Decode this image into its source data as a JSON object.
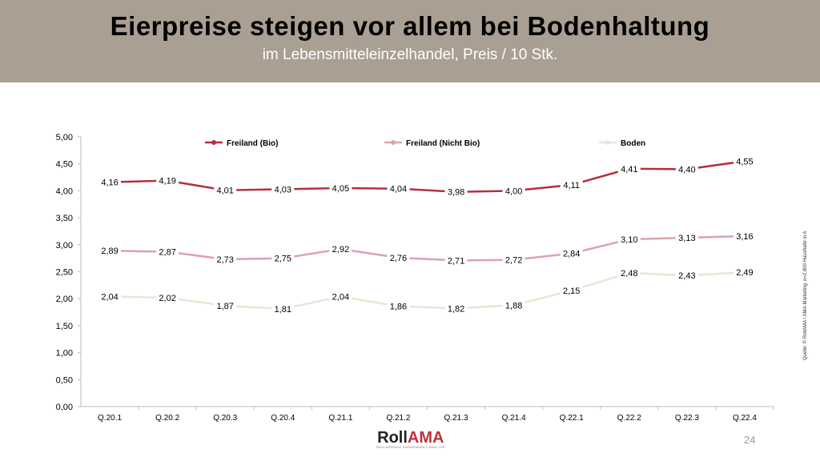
{
  "header": {
    "title": "Eierpreise steigen vor allem bei Bodenhaltung",
    "subtitle": "im Lebensmitteleinzelhandel, Preis / 10 Stk."
  },
  "source": "Quelle: © RollAMA / AMA-Marketing, n=2.800 Haushalte in A",
  "logo": {
    "part1": "Roll",
    "part2": "AMA",
    "tagline": "ROLLIERENDE AGRARMARKT-ANALYSE"
  },
  "page_number": "24",
  "chart_data": {
    "type": "line",
    "title": "",
    "xlabel": "",
    "ylabel": "",
    "ylim": [
      0,
      5
    ],
    "yticks": [
      "0,00",
      "0,50",
      "1,00",
      "1,50",
      "2,00",
      "2,50",
      "3,00",
      "3,50",
      "4,00",
      "4,50",
      "5,00"
    ],
    "categories": [
      "Q.20.1",
      "Q.20.2",
      "Q.20.3",
      "Q.20.4",
      "Q.21.1",
      "Q.21.2",
      "Q.21.3",
      "Q.21.4",
      "Q.22.1",
      "Q.22.2",
      "Q.22.3",
      "Q.22.4"
    ],
    "legend_position": "top",
    "grid": false,
    "series": [
      {
        "name": "Freiland (Bio)",
        "color": "#b5303f",
        "values": [
          4.16,
          4.19,
          4.01,
          4.03,
          4.05,
          4.04,
          3.98,
          4.0,
          4.11,
          4.41,
          4.4,
          4.55
        ],
        "labels": [
          "4,16",
          "4,19",
          "4,01",
          "4,03",
          "4,05",
          "4,04",
          "3,98",
          "4,00",
          "4,11",
          "4,41",
          "4,40",
          "4,55"
        ]
      },
      {
        "name": "Freiland (Nicht Bio)",
        "color": "#dca2a9",
        "values": [
          2.89,
          2.87,
          2.73,
          2.75,
          2.92,
          2.76,
          2.71,
          2.72,
          2.84,
          3.1,
          3.13,
          3.16
        ],
        "labels": [
          "2,89",
          "2,87",
          "2,73",
          "2,75",
          "2,92",
          "2,76",
          "2,71",
          "2,72",
          "2,84",
          "3,10",
          "3,13",
          "3,16"
        ]
      },
      {
        "name": "Boden",
        "color": "#ebe5d6",
        "values": [
          2.04,
          2.02,
          1.87,
          1.81,
          2.04,
          1.86,
          1.82,
          1.88,
          2.15,
          2.48,
          2.43,
          2.49
        ],
        "labels": [
          "2,04",
          "2,02",
          "1,87",
          "1,81",
          "2,04",
          "1,86",
          "1,82",
          "1,88",
          "2,15",
          "2,48",
          "2,43",
          "2,49"
        ]
      }
    ]
  }
}
